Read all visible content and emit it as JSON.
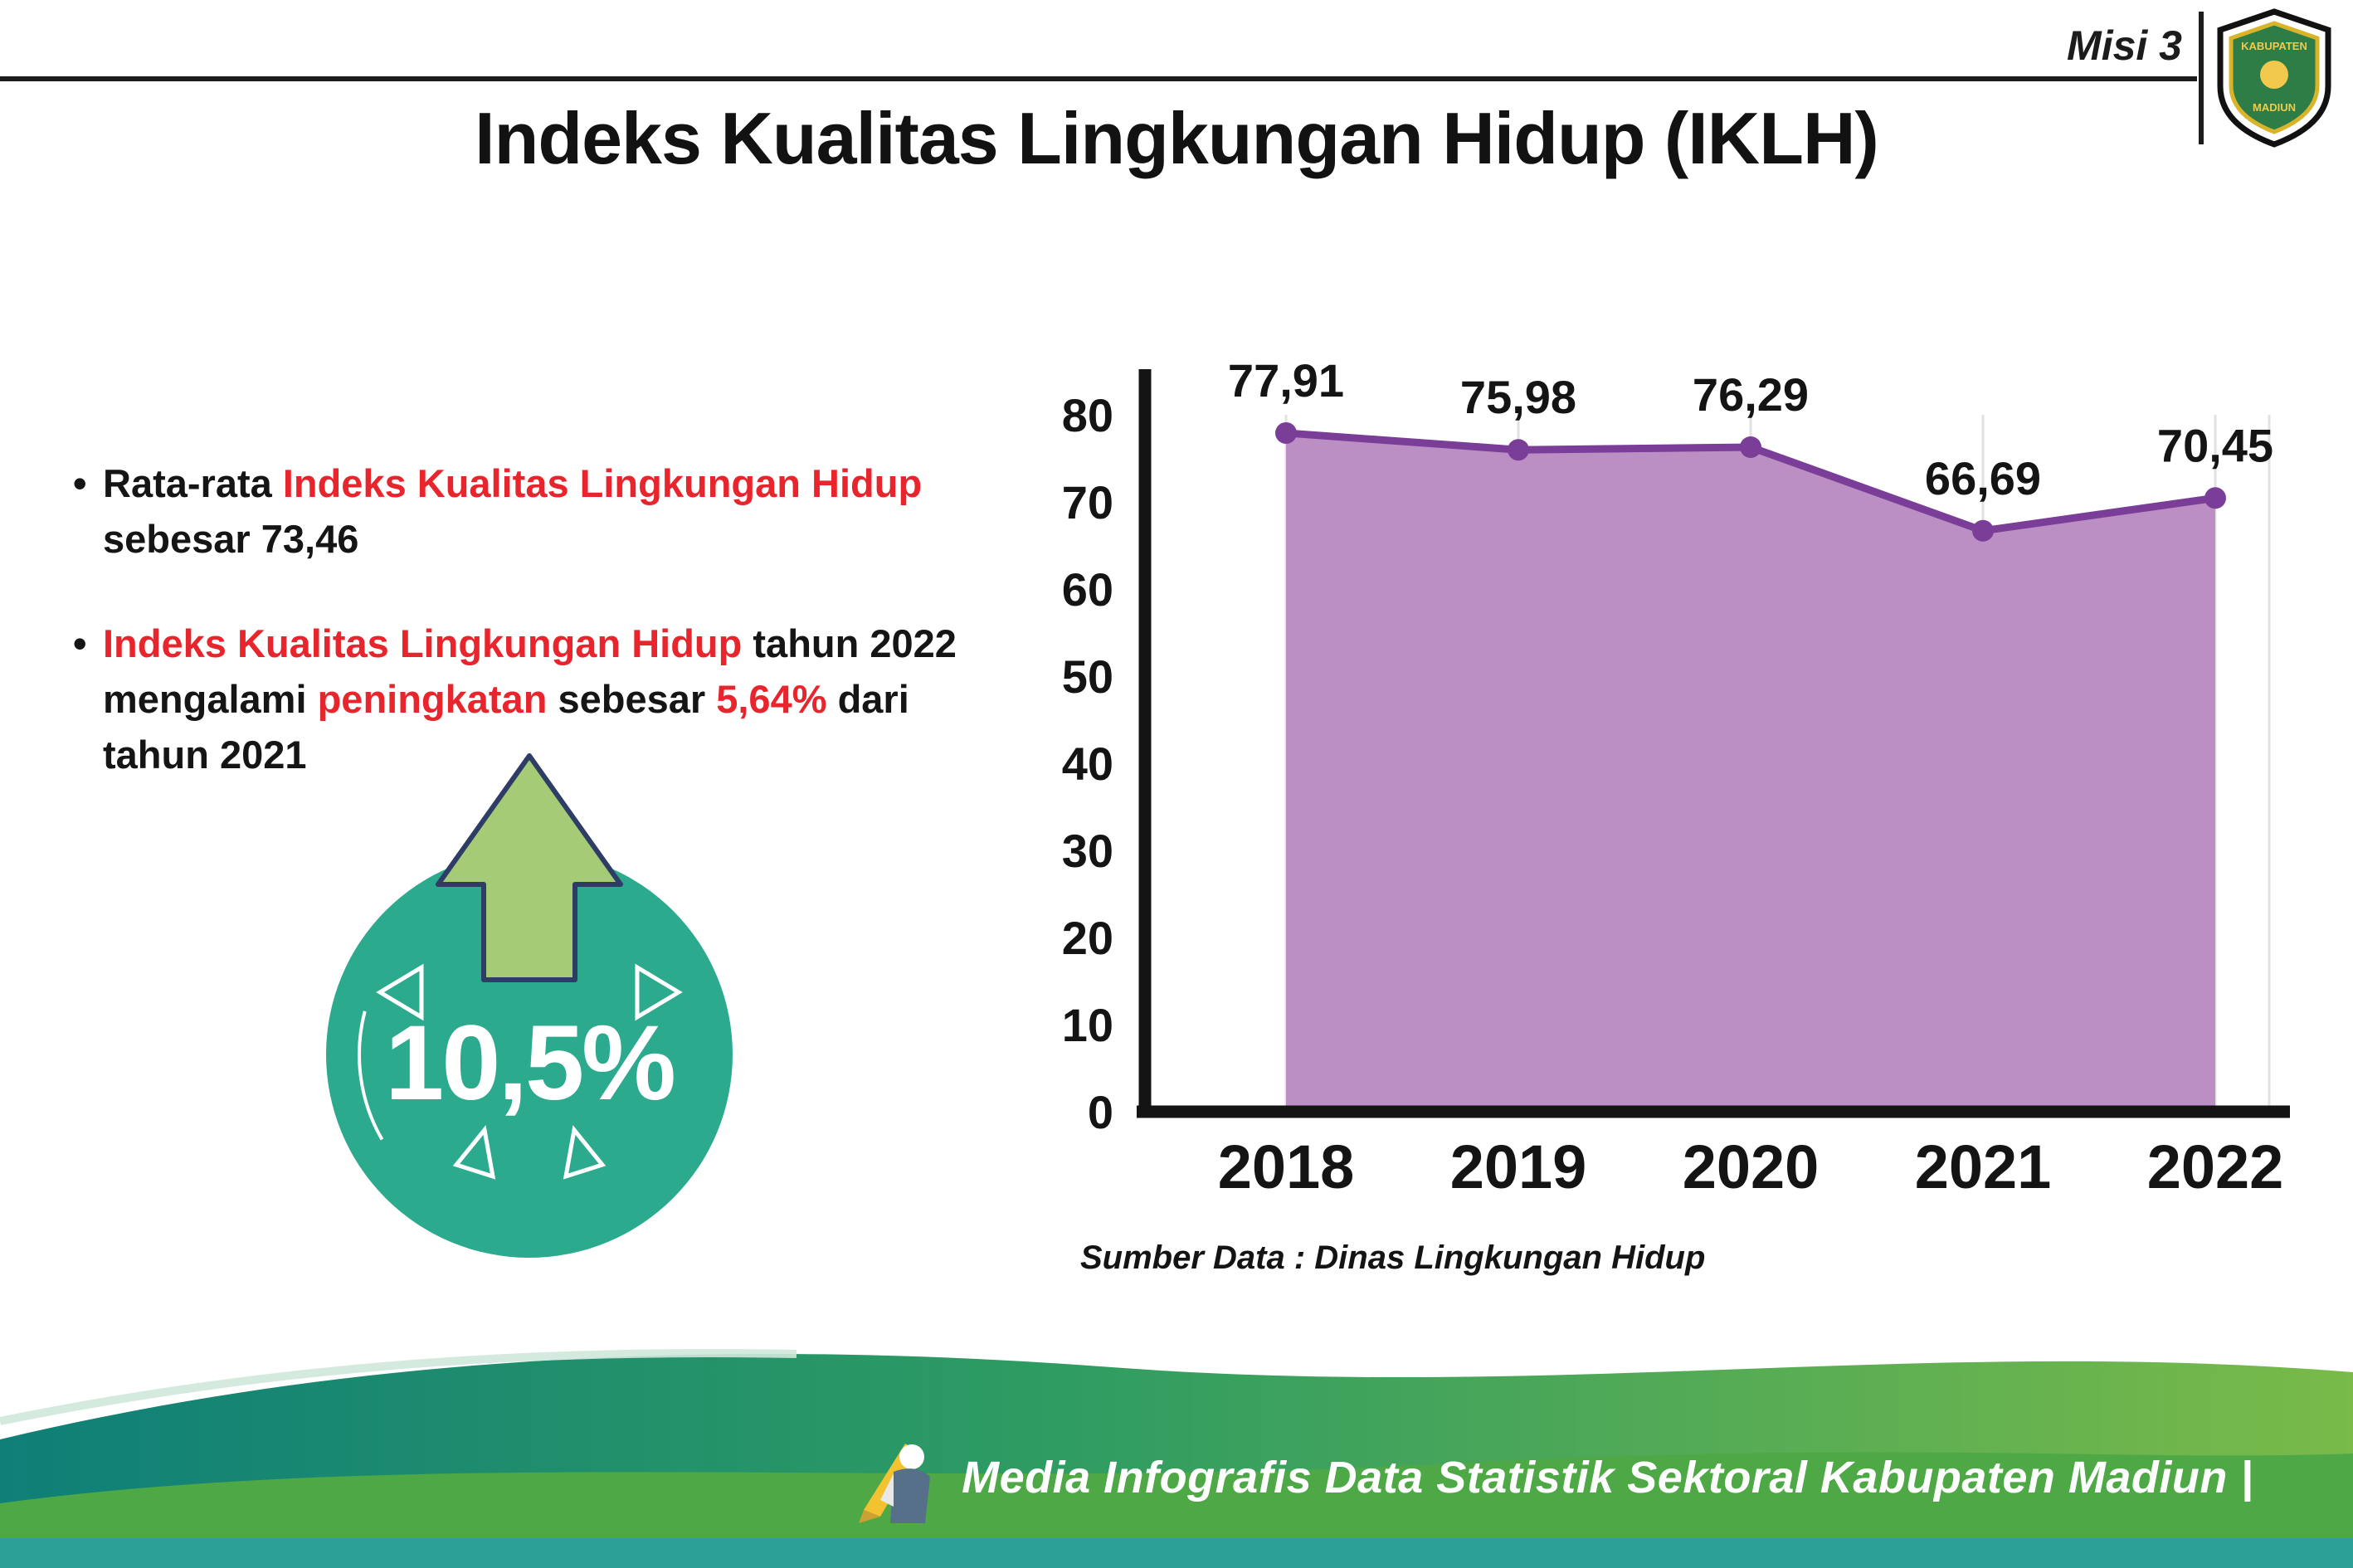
{
  "colors": {
    "accent_red": "#e8252c",
    "badge_teal": "#2caa8e",
    "arrow_green": "#a6cb77",
    "chart_fill": "#bb8ec4",
    "chart_line": "#7a3e98",
    "footer_teal": "#0f7f78",
    "footer_green": "#79ba49"
  },
  "header": {
    "misi": "Misi 3",
    "title": "Indeks Kualitas Lingkungan Hidup (IKLH)",
    "logo": {
      "top": "KABUPATEN",
      "bottom": "MADIUN"
    }
  },
  "bullets": [
    {
      "segments": [
        {
          "text": "Rata-rata ",
          "red": false
        },
        {
          "text": "Indeks Kualitas Lingkungan Hidup",
          "red": true
        },
        {
          "text": " sebesar 73,46",
          "red": false
        }
      ]
    },
    {
      "segments": [
        {
          "text": "Indeks Kualitas Lingkungan Hidup",
          "red": true
        },
        {
          "text": " tahun 2022 mengalami ",
          "red": false
        },
        {
          "text": "peningkatan",
          "red": true
        },
        {
          "text": " sebesar ",
          "red": false
        },
        {
          "text": "5,64%",
          "red": true
        },
        {
          "text": " dari tahun 2021",
          "red": false
        }
      ]
    }
  ],
  "badge": {
    "value": "10,5%"
  },
  "chart_data": {
    "type": "area",
    "categories": [
      "2018",
      "2019",
      "2020",
      "2021",
      "2022"
    ],
    "values": [
      77.91,
      75.98,
      76.29,
      66.69,
      70.45
    ],
    "point_labels": [
      "77,91",
      "75,98",
      "76,29",
      "66,69",
      "70,45"
    ],
    "title": "",
    "xlabel": "",
    "ylabel": "",
    "ylim": [
      0,
      80
    ],
    "yticks": [
      0,
      10,
      20,
      30,
      40,
      50,
      60,
      70,
      80
    ],
    "grid": "faint-vertical",
    "legend": "none",
    "colors": {
      "fill": "#bb8ec4",
      "line": "#7a3e98"
    }
  },
  "source": "Sumber Data : Dinas Lingkungan Hidup",
  "footer": {
    "text": "Media Infografis Data Statistik Sektoral Kabupaten Madiun |"
  }
}
